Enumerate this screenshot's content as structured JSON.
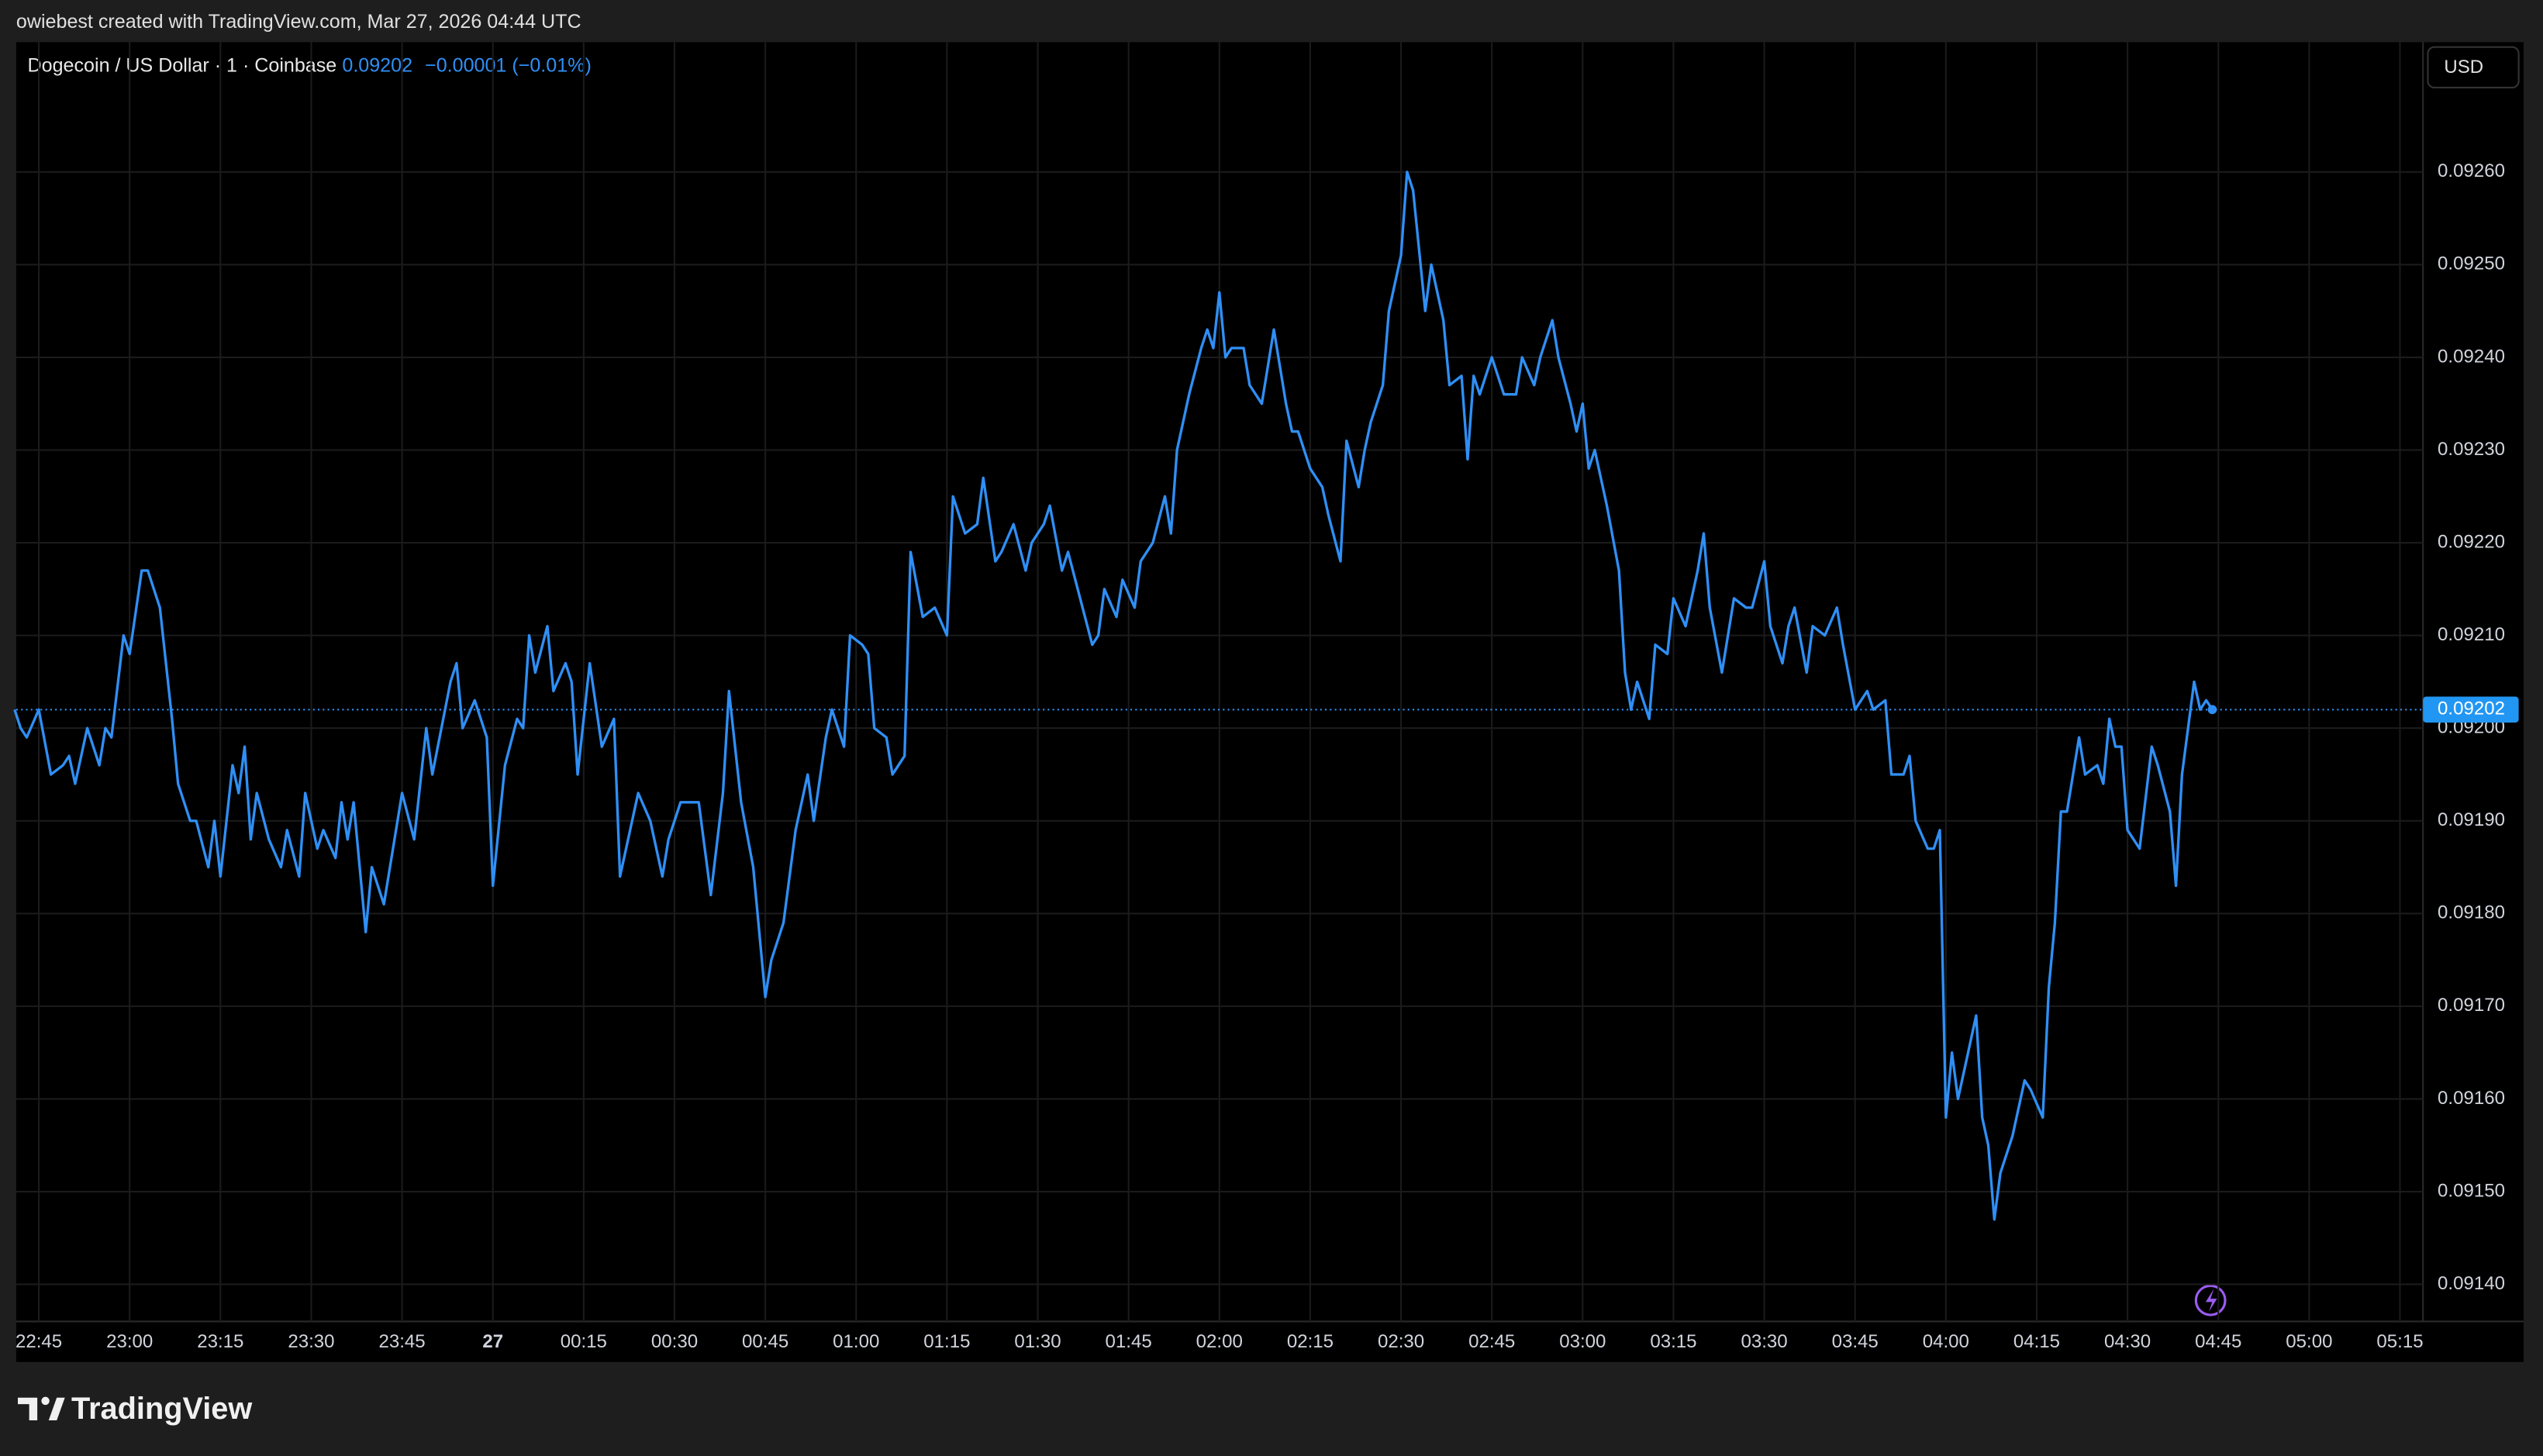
{
  "header": {
    "credit": "owiebest created with TradingView.com, Mar 27, 2026 04:44 UTC",
    "symbol": "Dogecoin / US Dollar · 1 · Coinbase",
    "price": "0.09202",
    "change": "−0.00001 (−0.01%)",
    "currency": "USD"
  },
  "footer": {
    "brand": "TradingView"
  },
  "chart_data": {
    "type": "line",
    "color": "#2f8ff5",
    "grid": true,
    "x": [
      "22:41",
      "22:42",
      "22:43",
      "22:45",
      "22:47",
      "22:49",
      "22:50",
      "22:51",
      "22:53",
      "22:55",
      "22:56",
      "22:57",
      "22:59",
      "23:00",
      "23:02",
      "23:03",
      "23:05",
      "23:07",
      "23:08",
      "23:10",
      "23:11",
      "23:13",
      "23:14",
      "23:15",
      "23:17",
      "23:18",
      "23:19",
      "23:20",
      "23:21",
      "23:23",
      "23:25",
      "23:26",
      "23:28",
      "23:29",
      "23:31",
      "23:32",
      "23:34",
      "23:35",
      "23:36",
      "23:37",
      "23:39",
      "23:40",
      "23:42",
      "23:45",
      "23:47",
      "23:49",
      "23:50",
      "23:53",
      "23:54",
      "23:55",
      "23:57",
      "23:59",
      "00:00",
      "00:02",
      "00:04",
      "00:05",
      "00:06",
      "00:07",
      "00:09",
      "00:10",
      "00:12",
      "00:13",
      "00:14",
      "00:16",
      "00:18",
      "00:20",
      "00:21",
      "00:24",
      "00:26",
      "00:28",
      "00:29",
      "00:31",
      "00:34",
      "00:36",
      "00:38",
      "00:39",
      "00:41",
      "00:43",
      "00:45",
      "00:46",
      "00:48",
      "00:50",
      "00:52",
      "00:53",
      "00:55",
      "00:56",
      "00:58",
      "00:59",
      "01:01",
      "01:02",
      "01:03",
      "01:05",
      "01:06",
      "01:08",
      "01:09",
      "01:11",
      "01:13",
      "01:15",
      "01:16",
      "01:18",
      "01:20",
      "01:21",
      "01:23",
      "01:24",
      "01:26",
      "01:28",
      "01:29",
      "01:31",
      "01:32",
      "01:34",
      "01:35",
      "01:39",
      "01:40",
      "01:41",
      "01:43",
      "01:44",
      "01:46",
      "01:47",
      "01:49",
      "01:51",
      "01:52",
      "01:53",
      "01:55",
      "01:57",
      "01:58",
      "01:59",
      "02:00",
      "02:01",
      "02:02",
      "02:04",
      "02:05",
      "02:07",
      "02:08",
      "02:09",
      "02:11",
      "02:12",
      "02:13",
      "02:15",
      "02:17",
      "02:18",
      "02:20",
      "02:21",
      "02:23",
      "02:24",
      "02:25",
      "02:27",
      "02:28",
      "02:30",
      "02:31",
      "02:32",
      "02:34",
      "02:35",
      "02:37",
      "02:38",
      "02:40",
      "02:41",
      "02:42",
      "02:43",
      "02:45",
      "02:47",
      "02:49",
      "02:50",
      "02:52",
      "02:53",
      "02:55",
      "02:56",
      "02:58",
      "02:59",
      "03:00",
      "03:01",
      "03:02",
      "03:04",
      "03:06",
      "03:07",
      "03:08",
      "03:09",
      "03:11",
      "03:12",
      "03:14",
      "03:15",
      "03:17",
      "03:19",
      "03:20",
      "03:21",
      "03:23",
      "03:24",
      "03:25",
      "03:27",
      "03:28",
      "03:30",
      "03:31",
      "03:33",
      "03:34",
      "03:35",
      "03:37",
      "03:38",
      "03:40",
      "03:42",
      "03:43",
      "03:45",
      "03:47",
      "03:48",
      "03:50",
      "03:51",
      "03:53",
      "03:54",
      "03:55",
      "03:57",
      "03:58",
      "03:59",
      "04:00",
      "04:01",
      "04:02",
      "04:03",
      "04:05",
      "04:06",
      "04:07",
      "04:08",
      "04:09",
      "04:11",
      "04:13",
      "04:14",
      "04:16",
      "04:17",
      "04:18",
      "04:19",
      "04:20",
      "04:22",
      "04:23",
      "04:25",
      "04:26",
      "04:27",
      "04:28",
      "04:29",
      "04:30",
      "04:32",
      "04:34",
      "04:35",
      "04:37",
      "04:38",
      "04:39",
      "04:40",
      "04:41",
      "04:42",
      "04:43",
      "04:44"
    ],
    "values": [
      0.09202,
      0.092,
      0.09199,
      0.09202,
      0.09195,
      0.09196,
      0.09197,
      0.09194,
      0.092,
      0.09196,
      0.092,
      0.09199,
      0.0921,
      0.09208,
      0.09217,
      0.09217,
      0.09213,
      0.09201,
      0.09194,
      0.0919,
      0.0919,
      0.09185,
      0.0919,
      0.09184,
      0.09196,
      0.09193,
      0.09198,
      0.09188,
      0.09193,
      0.09188,
      0.09185,
      0.09189,
      0.09184,
      0.09193,
      0.09187,
      0.09189,
      0.09186,
      0.09192,
      0.09188,
      0.09192,
      0.09178,
      0.09185,
      0.09181,
      0.09193,
      0.09188,
      0.092,
      0.09195,
      0.09205,
      0.09207,
      0.092,
      0.09203,
      0.09199,
      0.09183,
      0.09196,
      0.09201,
      0.092,
      0.0921,
      0.09206,
      0.09211,
      0.09204,
      0.09207,
      0.09205,
      0.09195,
      0.09207,
      0.09198,
      0.09201,
      0.09184,
      0.09193,
      0.0919,
      0.09184,
      0.09188,
      0.09192,
      0.09192,
      0.09182,
      0.09193,
      0.09204,
      0.09192,
      0.09185,
      0.09171,
      0.09175,
      0.09179,
      0.09189,
      0.09195,
      0.0919,
      0.09199,
      0.09202,
      0.09198,
      0.0921,
      0.09209,
      0.09208,
      0.092,
      0.09199,
      0.09195,
      0.09197,
      0.09219,
      0.09212,
      0.09213,
      0.0921,
      0.09225,
      0.09221,
      0.09222,
      0.09227,
      0.09218,
      0.09219,
      0.09222,
      0.09217,
      0.0922,
      0.09222,
      0.09224,
      0.09217,
      0.09219,
      0.09209,
      0.0921,
      0.09215,
      0.09212,
      0.09216,
      0.09213,
      0.09218,
      0.0922,
      0.09225,
      0.09221,
      0.0923,
      0.09236,
      0.09241,
      0.09243,
      0.09241,
      0.09247,
      0.0924,
      0.09241,
      0.09241,
      0.09237,
      0.09235,
      0.09239,
      0.09243,
      0.09235,
      0.09232,
      0.09232,
      0.09228,
      0.09226,
      0.09223,
      0.09218,
      0.09231,
      0.09226,
      0.0923,
      0.09233,
      0.09237,
      0.09245,
      0.09251,
      0.0926,
      0.09258,
      0.09245,
      0.0925,
      0.09244,
      0.09237,
      0.09238,
      0.09229,
      0.09238,
      0.09236,
      0.0924,
      0.09236,
      0.09236,
      0.0924,
      0.09237,
      0.0924,
      0.09244,
      0.0924,
      0.09235,
      0.09232,
      0.09235,
      0.09228,
      0.0923,
      0.09224,
      0.09217,
      0.09206,
      0.09202,
      0.09205,
      0.09201,
      0.09209,
      0.09208,
      0.09214,
      0.09211,
      0.09217,
      0.09221,
      0.09213,
      0.09206,
      0.0921,
      0.09214,
      0.09213,
      0.09213,
      0.09218,
      0.09211,
      0.09207,
      0.09211,
      0.09213,
      0.09206,
      0.09211,
      0.0921,
      0.09213,
      0.09209,
      0.09202,
      0.09204,
      0.09202,
      0.09203,
      0.09195,
      0.09195,
      0.09197,
      0.0919,
      0.09187,
      0.09187,
      0.09189,
      0.09158,
      0.09165,
      0.0916,
      0.09163,
      0.09169,
      0.09158,
      0.09155,
      0.09147,
      0.09152,
      0.09156,
      0.09162,
      0.09161,
      0.09158,
      0.09172,
      0.09179,
      0.09191,
      0.09191,
      0.09199,
      0.09195,
      0.09196,
      0.09194,
      0.09201,
      0.09198,
      0.09198,
      0.09189,
      0.09187,
      0.09198,
      0.09196,
      0.09191,
      0.09183,
      0.09195,
      0.092,
      0.09205,
      0.09202,
      0.09203,
      0.09202
    ],
    "xlim": [
      "22:41",
      "05:18"
    ],
    "xticks": [
      "22:45",
      "23:00",
      "23:15",
      "23:30",
      "23:45",
      {
        "value": "00:00",
        "label": "27"
      },
      "00:15",
      "00:30",
      "00:45",
      "01:00",
      "01:15",
      "01:30",
      "01:45",
      "02:00",
      "02:15",
      "02:30",
      "02:45",
      "03:00",
      "03:15",
      "03:30",
      "03:45",
      "04:00",
      "04:15",
      "04:30",
      "04:45",
      "05:00",
      "05:15"
    ],
    "ylim": [
      0.09136,
      0.09274
    ],
    "yticks": [
      {
        "value": 0.0914,
        "label": "0.09140"
      },
      {
        "value": 0.0915,
        "label": "0.09150"
      },
      {
        "value": 0.0916,
        "label": "0.09160"
      },
      {
        "value": 0.0917,
        "label": "0.09170"
      },
      {
        "value": 0.0918,
        "label": "0.09180"
      },
      {
        "value": 0.0919,
        "label": "0.09190"
      },
      {
        "value": 0.092,
        "label": "0.09200"
      },
      {
        "value": 0.0921,
        "label": "0.09210"
      },
      {
        "value": 0.0922,
        "label": "0.09220"
      },
      {
        "value": 0.0923,
        "label": "0.09230"
      },
      {
        "value": 0.0924,
        "label": "0.09240"
      },
      {
        "value": 0.0925,
        "label": "0.09250"
      },
      {
        "value": 0.0926,
        "label": "0.09260"
      }
    ],
    "last_price": {
      "value": 0.09202,
      "label": "0.09202"
    }
  }
}
